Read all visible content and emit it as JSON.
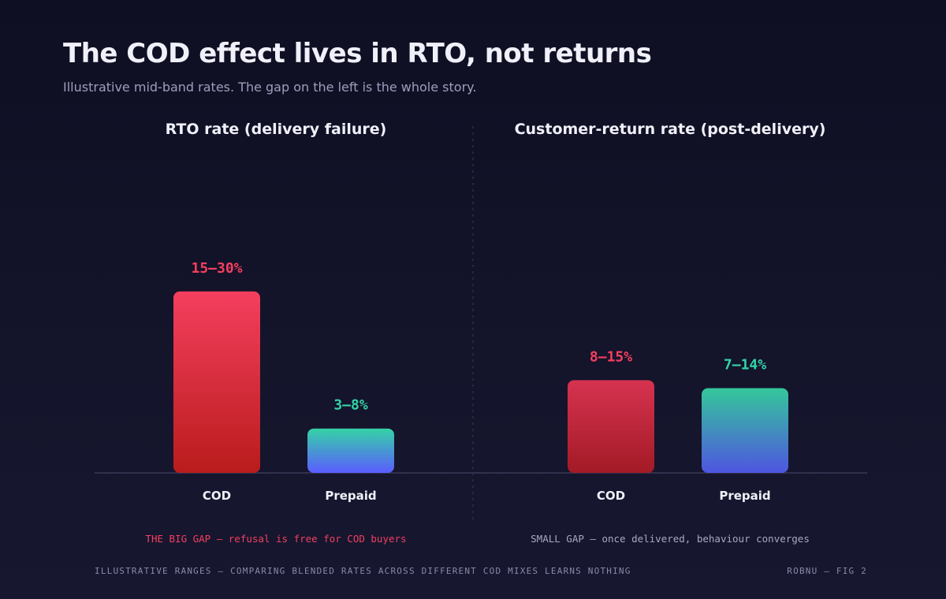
{
  "title": "The COD effect lives in RTO, not returns",
  "subtitle": "Illustrative mid-band rates. The gap on the left is the whole story.",
  "footer": {
    "left": "ILLUSTRATIVE RANGES — COMPARING BLENDED RATES ACROSS DIFFERENT COD MIXES LEARNS NOTHING",
    "right": "ROBNU — FIG 2"
  },
  "colors": {
    "cod_bright": "#f43f5e",
    "cod_dark": "#b91c1c",
    "cod_muted_top": "#d63350",
    "cod_muted_bottom": "#a31a26",
    "prepaid_top": "#34d3a6",
    "prepaid_bottom": "#5b5cff",
    "prepaid_muted_top": "#34c79a",
    "prepaid_muted_bottom": "#4f55e0",
    "note_red": "#f43f5e",
    "note_gray": "#a8a8c2"
  },
  "chart_data": [
    {
      "type": "bar",
      "title": "RTO rate (delivery failure)",
      "categories": [
        "COD",
        "Prepaid"
      ],
      "values": [
        22.5,
        5.5
      ],
      "value_labels": [
        "15–30%",
        "3–8%"
      ],
      "ylim": [
        0,
        30
      ],
      "note": "THE BIG GAP — refusal is free for COD buyers"
    },
    {
      "type": "bar",
      "title": "Customer-return rate (post-delivery)",
      "categories": [
        "COD",
        "Prepaid"
      ],
      "values": [
        11.5,
        10.5
      ],
      "value_labels": [
        "8–15%",
        "7–14%"
      ],
      "ylim": [
        0,
        30
      ],
      "note": "SMALL GAP — once delivered, behaviour converges"
    }
  ]
}
